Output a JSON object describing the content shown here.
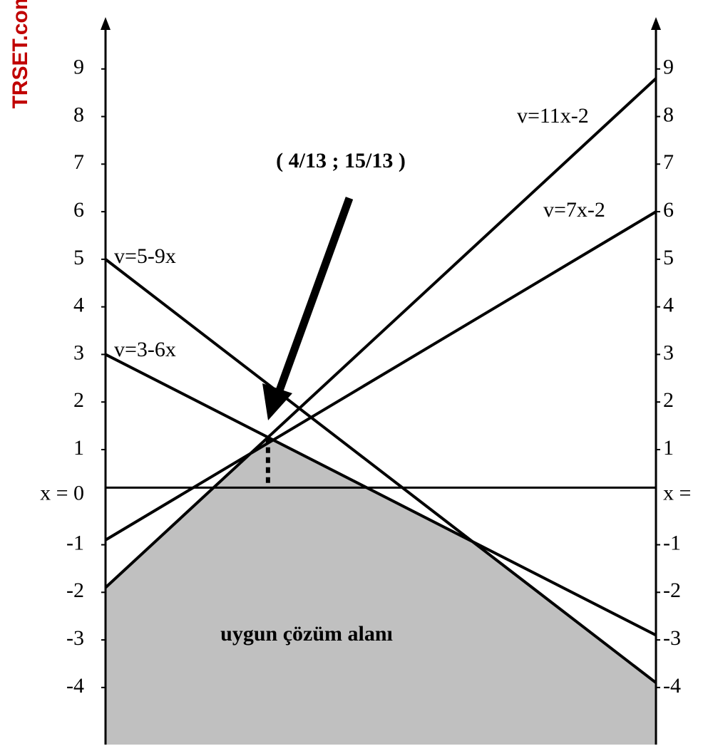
{
  "chart_data": {
    "type": "line",
    "watermark": "TRSET.com",
    "categories": [
      null,
      null
    ],
    "series": [
      {
        "name": "v=11x-2",
        "color": "#000000",
        "values": [
          -1.9,
          8.8
        ]
      },
      {
        "name": "v=7x-2",
        "color": "#000000",
        "values": [
          -0.9,
          6.0
        ]
      },
      {
        "name": "v=5-9x",
        "color": "#000000",
        "values": [
          5,
          -3.9
        ]
      },
      {
        "name": "v=3-6x",
        "color": "#000000",
        "values": [
          3,
          -2.9
        ]
      }
    ],
    "reference_line": {
      "value": 0.2,
      "labels": [
        "x = 0",
        "x ="
      ]
    },
    "point_label": "( 4/13 ; 15/13 )",
    "region_label": "uygun çözüm alanı",
    "region_color": "#c0c0c0",
    "ylim": [
      -5.2,
      10
    ],
    "yticks": [
      9,
      8,
      7,
      6,
      5,
      4,
      3,
      2,
      1,
      -1,
      -2,
      -3,
      -4
    ],
    "y2lim": [
      -5.2,
      10
    ],
    "y2ticks": [
      9,
      8,
      7,
      6,
      5,
      4,
      3,
      2,
      1,
      -1,
      -2,
      -3,
      -4
    ]
  }
}
